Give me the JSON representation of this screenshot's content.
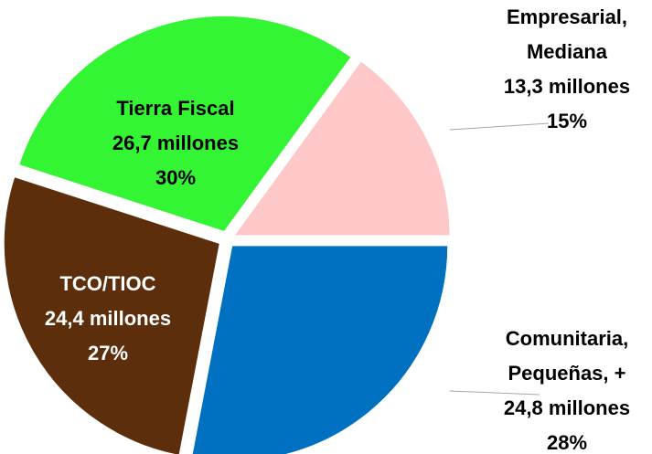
{
  "chart_data": {
    "type": "pie",
    "categories": [
      [
        "Empresarial,",
        "Mediana"
      ],
      [
        "Comunitaria,",
        "Pequeñas, +"
      ],
      [
        "TCO/TIOC"
      ],
      [
        "Tierra Fiscal"
      ]
    ],
    "values": [
      15,
      28,
      27,
      30
    ],
    "value_labels": [
      "15%",
      "28%",
      "27%",
      "30%"
    ],
    "amounts": [
      13.3,
      24.8,
      24.4,
      26.7
    ],
    "amount_labels": [
      "13,3 millones",
      "24,8 millones",
      "24,4 millones",
      "26,7 millones"
    ],
    "colors": [
      "#ffc8c8",
      "#0070c0",
      "#5c2e0b",
      "#33f533"
    ]
  }
}
